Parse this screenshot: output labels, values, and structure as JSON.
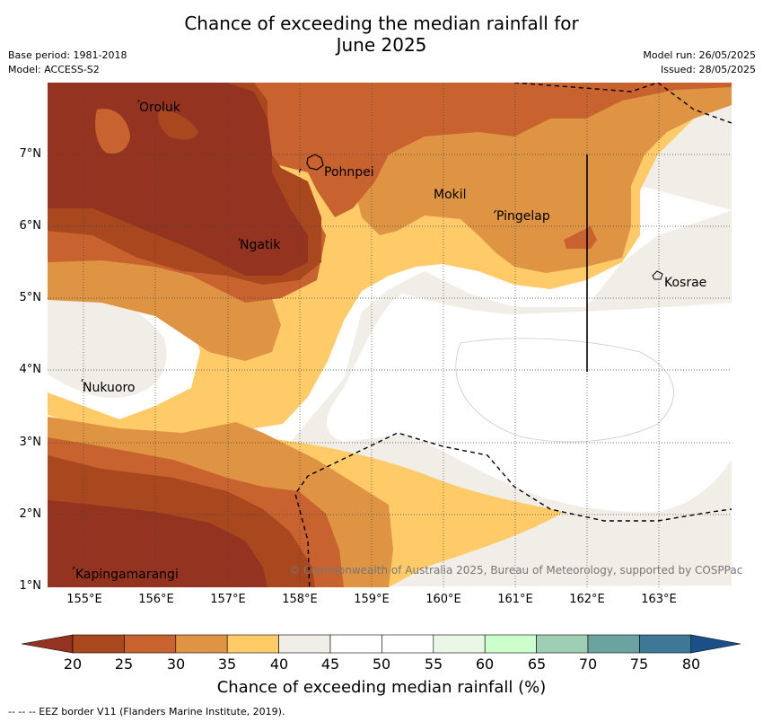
{
  "title_line1": "Chance of exceeding the median rainfall for",
  "title_line2": "June 2025",
  "meta": {
    "base_period": "Base period: 1981-2018",
    "model": "Model: ACCESS-S2",
    "model_run": "Model run: 26/05/2025",
    "issued": "Issued: 28/05/2025"
  },
  "lon_ticks": [
    "155°E",
    "156°E",
    "157°E",
    "158°E",
    "159°E",
    "160°E",
    "161°E",
    "162°E",
    "163°E"
  ],
  "lat_ticks": [
    "7°N",
    "6°N",
    "5°N",
    "4°N",
    "3°N",
    "2°N",
    "1°N"
  ],
  "places": {
    "oroluk": "Oroluk",
    "pohnpei": "Pohnpei",
    "mokil": "Mokil",
    "pingelap": "Pingelap",
    "ngatik": "Ngatik",
    "kosrae": "Kosrae",
    "nukuoro": "Nukuoro",
    "kapingamarangi": "Kapingamarangi"
  },
  "copyright": "© Commonwealth of Australia 2025, Bureau of Meteorology, supported by COSPPac",
  "colorbar": {
    "ticks": [
      "20",
      "25",
      "30",
      "35",
      "40",
      "45",
      "50",
      "55",
      "60",
      "65",
      "70",
      "75",
      "80"
    ],
    "title": "Chance of exceeding median rainfall (%)",
    "colors": [
      "#a9471f",
      "#c8622e",
      "#df9444",
      "#fecb68",
      "#f1ede7",
      "#ffffff",
      "#ffffff",
      "#eaf6e6",
      "#ccffcc",
      "#9ecfb5",
      "#6ba3a0",
      "#3f7796",
      "#1b4f87"
    ]
  },
  "footnote": "-- -- -- EEZ border V11 (Flanders Marine Institute, 2019)."
}
